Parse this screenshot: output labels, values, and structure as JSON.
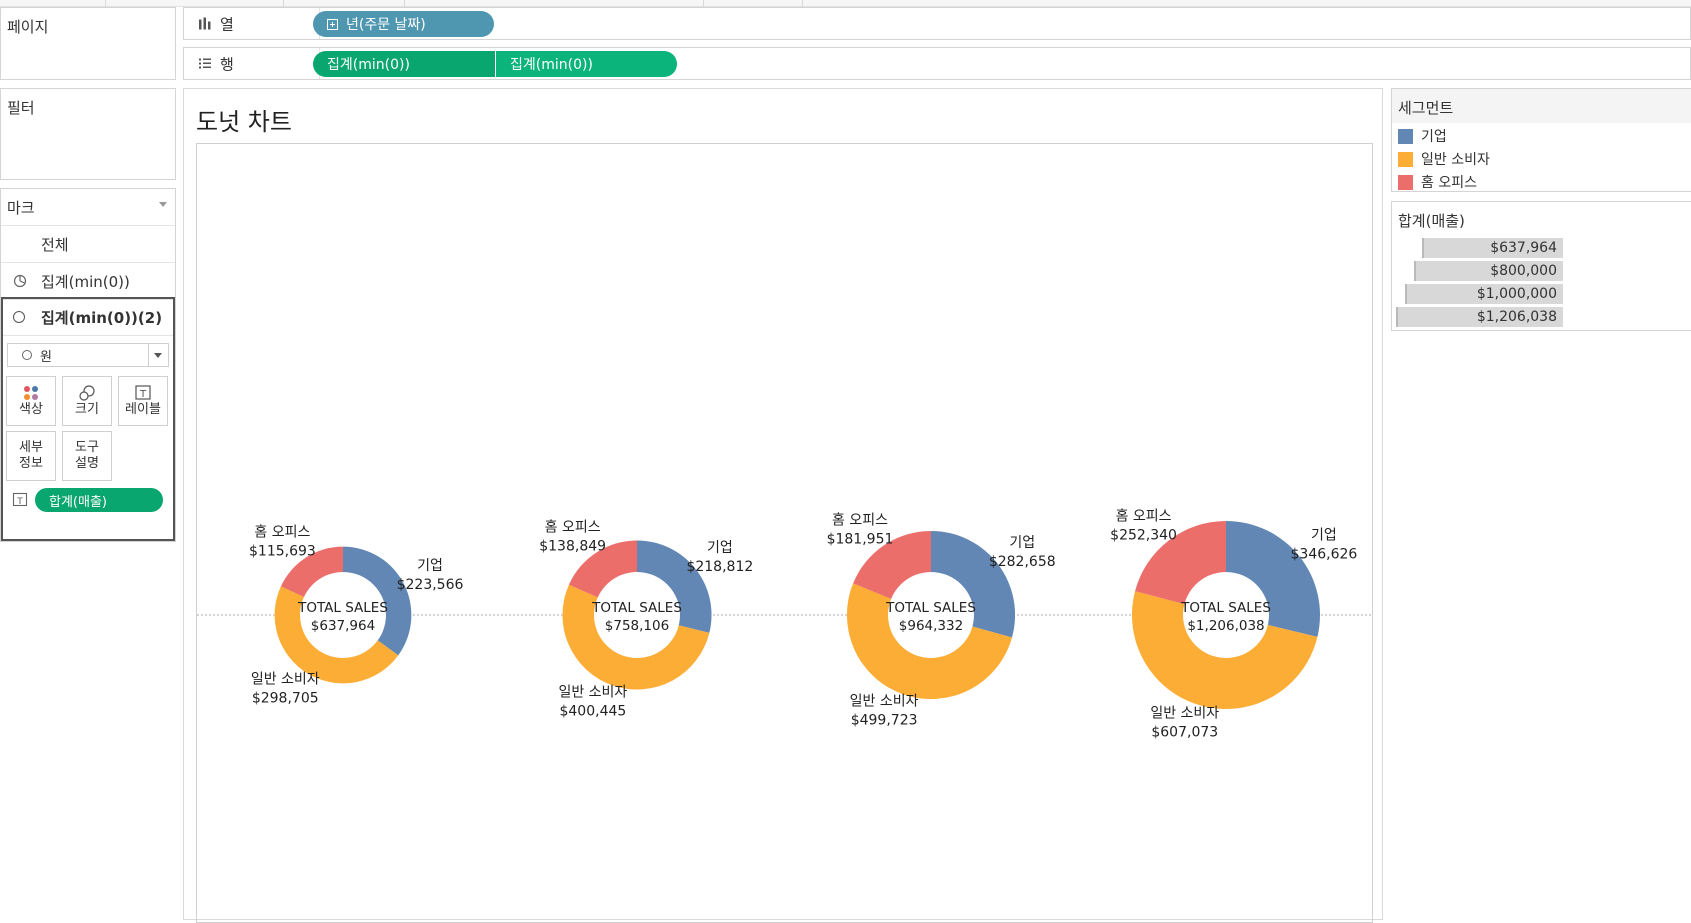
{
  "shelves": {
    "pages_label": "페이지",
    "filters_label": "필터",
    "columns": {
      "icon": "columns-icon",
      "label": "열",
      "pill": "년(주문 날짜)"
    },
    "rows": {
      "icon": "rows-icon",
      "label": "행",
      "pills": [
        "집계(min(0))",
        "집계(min(0))"
      ]
    }
  },
  "marks": {
    "title": "마크",
    "items": [
      "전체",
      "집계(min(0))",
      "집계(min(0))(2)"
    ],
    "mark_type": "원",
    "buttons": [
      {
        "label": "색상",
        "icon": "color-icon"
      },
      {
        "label": "크기",
        "icon": "size-icon"
      },
      {
        "label": "레이블",
        "icon": "label-icon"
      },
      {
        "label": "세부\n정보",
        "icon": "detail-icon"
      },
      {
        "label": "도구\n설명",
        "icon": "tooltip-icon"
      }
    ],
    "field_pill": "합계(매출)"
  },
  "legend": {
    "title": "세그먼트",
    "items": [
      {
        "label": "기업",
        "color": "#6287b4"
      },
      {
        "label": "일반 소비자",
        "color": "#fcad35"
      },
      {
        "label": "홈 오피스",
        "color": "#ec6e6b"
      }
    ]
  },
  "size_legend": {
    "title": "합계(매출)",
    "items": [
      "$637,964",
      "$800,000",
      "$1,000,000",
      "$1,206,038"
    ]
  },
  "chart_data": {
    "type": "pie",
    "title": "도넛 차트",
    "center_label": "TOTAL SALES",
    "segments": [
      "기업",
      "일반 소비자",
      "홈 오피스"
    ],
    "colors": [
      "#6287b4",
      "#fcad35",
      "#ec6e6b"
    ],
    "donuts": [
      {
        "total": 637964,
        "total_label": "$637,964",
        "values": [
          223566,
          298705,
          115693
        ],
        "value_labels": [
          "$223,566",
          "$298,705",
          "$115,693"
        ]
      },
      {
        "total": 758106,
        "total_label": "$758,106",
        "values": [
          218812,
          400445,
          138849
        ],
        "value_labels": [
          "$218,812",
          "$400,445",
          "$138,849"
        ]
      },
      {
        "total": 964332,
        "total_label": "$964,332",
        "values": [
          282658,
          499723,
          181951
        ],
        "value_labels": [
          "$282,658",
          "$499,723",
          "$181,951"
        ]
      },
      {
        "total": 1206038,
        "total_label": "$1,206,038",
        "values": [
          346626,
          607073,
          252340
        ],
        "value_labels": [
          "$346,626",
          "$607,073",
          "$252,340"
        ]
      }
    ]
  }
}
